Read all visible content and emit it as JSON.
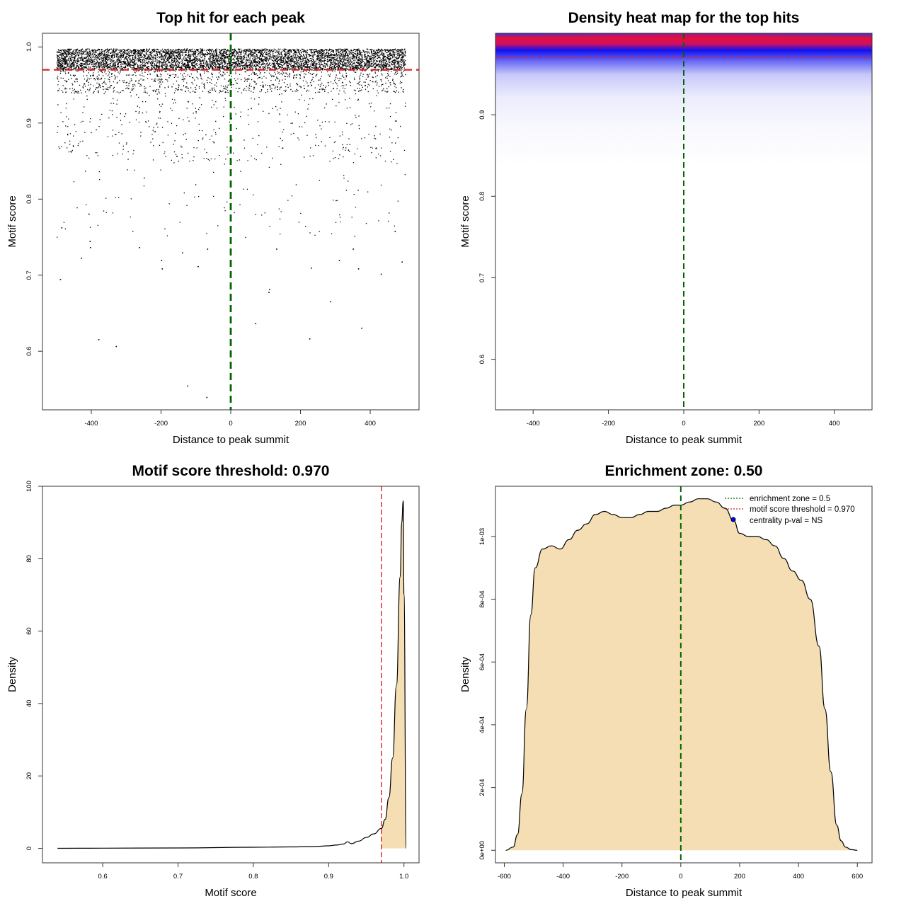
{
  "colors": {
    "threshold_line": "#dd2222",
    "center_line": "#006600",
    "density_fill": "#f5deb3",
    "heat_low": "#ffffff",
    "heat_mid": "#0000ff",
    "heat_high": "#ff0000",
    "legend_point": "#0000ff"
  },
  "chart_data": [
    {
      "type": "scatter",
      "title": "Top hit for each peak",
      "xlabel": "Distance to peak summit",
      "ylabel": "Motif score",
      "xlim": [
        -540,
        540
      ],
      "ylim": [
        0.523,
        1.018
      ],
      "x_ticks": [
        -400,
        -200,
        0,
        200,
        400
      ],
      "x_tick_labels": [
        "-400",
        "-200",
        "0",
        "200",
        "400"
      ],
      "y_ticks": [
        0.6,
        0.7,
        0.8,
        0.9,
        1.0
      ],
      "y_tick_labels": [
        "0.6",
        "0.7",
        "0.8",
        "0.9",
        "1.0"
      ],
      "points_x_range": [
        -500,
        500
      ],
      "score_threshold": 0.97,
      "center_line_x": 0,
      "outlier_points": [
        {
          "x": -490,
          "y": 0.695
        },
        {
          "x": -486,
          "y": 0.763
        },
        {
          "x": -430,
          "y": 0.723
        },
        {
          "x": -408,
          "y": 0.781
        },
        {
          "x": -405,
          "y": 0.745
        },
        {
          "x": -404,
          "y": 0.737
        },
        {
          "x": -380,
          "y": 0.616
        },
        {
          "x": -330,
          "y": 0.607
        },
        {
          "x": -263,
          "y": 0.737
        },
        {
          "x": -200,
          "y": 0.72
        },
        {
          "x": -198,
          "y": 0.709
        },
        {
          "x": -125,
          "y": 0.555
        },
        {
          "x": -140,
          "y": 0.73
        },
        {
          "x": -70,
          "y": 0.54
        },
        {
          "x": -68,
          "y": 0.735
        },
        {
          "x": -95,
          "y": 0.712
        },
        {
          "x": 70,
          "y": 0.637
        },
        {
          "x": 108,
          "y": 0.678
        },
        {
          "x": 110,
          "y": 0.682
        },
        {
          "x": 130,
          "y": 0.735
        },
        {
          "x": 225,
          "y": 0.617
        },
        {
          "x": 230,
          "y": 0.71
        },
        {
          "x": 285,
          "y": 0.666
        },
        {
          "x": 310,
          "y": 0.72
        },
        {
          "x": 365,
          "y": 0.709
        },
        {
          "x": 374,
          "y": 0.631
        },
        {
          "x": 430,
          "y": 0.702
        },
        {
          "x": 490,
          "y": 0.718
        },
        {
          "x": 470,
          "y": 0.758
        },
        {
          "x": 350,
          "y": 0.735
        }
      ]
    },
    {
      "type": "heatmap",
      "title": "Density heat map for the top hits",
      "xlabel": "Distance to peak summit",
      "ylabel": "Motif score",
      "xlim": [
        -500,
        500
      ],
      "ylim": [
        0.538,
        1.0
      ],
      "x_ticks": [
        -400,
        -200,
        0,
        200,
        400
      ],
      "x_tick_labels": [
        "-400",
        "-200",
        "0",
        "200",
        "400"
      ],
      "y_ticks": [
        0.6,
        0.7,
        0.8,
        0.9
      ],
      "y_tick_labels": [
        "0.6",
        "0.7",
        "0.8",
        "0.9"
      ],
      "score_threshold": 0.97,
      "center_line_x": 0
    },
    {
      "type": "area",
      "title": "Motif score threshold: 0.970",
      "xlabel": "Motif score",
      "ylabel": "Density",
      "xlim": [
        0.52,
        1.02
      ],
      "ylim": [
        -4,
        100
      ],
      "x_ticks": [
        0.6,
        0.7,
        0.8,
        0.9,
        1.0
      ],
      "x_tick_labels": [
        "0.6",
        "0.7",
        "0.8",
        "0.9",
        "1.0"
      ],
      "y_ticks": [
        0,
        20,
        40,
        60,
        80,
        100
      ],
      "y_tick_labels": [
        "0",
        "20",
        "40",
        "60",
        "80",
        "100"
      ],
      "threshold_line_x": 0.97,
      "x": [
        0.54,
        0.6,
        0.7,
        0.8,
        0.85,
        0.88,
        0.9,
        0.91,
        0.92,
        0.925,
        0.93,
        0.94,
        0.95,
        0.96,
        0.97,
        0.975,
        0.98,
        0.985,
        0.99,
        0.995,
        0.997,
        0.999,
        1.0,
        1.003
      ],
      "y": [
        0,
        0.05,
        0.1,
        0.3,
        0.4,
        0.5,
        0.7,
        0.9,
        1.2,
        1.8,
        1.3,
        2.0,
        3.0,
        4.0,
        5.5,
        8,
        14,
        25,
        45,
        75,
        90,
        96,
        70,
        0
      ]
    },
    {
      "type": "area",
      "title": "Enrichment zone: 0.50",
      "xlabel": "Distance to peak summit",
      "ylabel": "Density",
      "xlim": [
        -630,
        650
      ],
      "ylim": [
        -4e-05,
        0.00116
      ],
      "x_ticks": [
        -600,
        -400,
        -200,
        0,
        200,
        400,
        600
      ],
      "x_tick_labels": [
        "-600",
        "-400",
        "-200",
        "0",
        "200",
        "400",
        "600"
      ],
      "y_ticks": [
        0,
        0.0002,
        0.0004,
        0.0006,
        0.0008,
        0.001
      ],
      "y_tick_labels": [
        "0e+00",
        "2e-04",
        "4e-04",
        "6e-04",
        "8e-04",
        "1e-03"
      ],
      "center_line_x": 0,
      "x": [
        -595,
        -570,
        -555,
        -540,
        -525,
        -510,
        -495,
        -470,
        -440,
        -410,
        -380,
        -350,
        -320,
        -290,
        -260,
        -230,
        -200,
        -170,
        -140,
        -110,
        -80,
        -50,
        -20,
        0,
        30,
        60,
        90,
        120,
        150,
        180,
        200,
        230,
        260,
        290,
        320,
        350,
        380,
        410,
        440,
        470,
        490,
        510,
        530,
        545,
        560,
        580,
        600
      ],
      "y": [
        0,
        1e-05,
        5e-05,
        0.00018,
        0.00045,
        0.00075,
        0.0009,
        0.00096,
        0.00097,
        0.00096,
        0.00099,
        0.00102,
        0.00104,
        0.00107,
        0.00108,
        0.00107,
        0.00106,
        0.00106,
        0.00107,
        0.00108,
        0.00108,
        0.00109,
        0.0011,
        0.0011,
        0.00111,
        0.00112,
        0.00112,
        0.00111,
        0.00109,
        0.00105,
        0.00101,
        0.001,
        0.001,
        0.00099,
        0.00097,
        0.00093,
        0.00089,
        0.00086,
        0.0008,
        0.00065,
        0.00045,
        0.00025,
        8e-05,
        3e-05,
        1e-05,
        2e-06,
        0
      ],
      "legend": [
        {
          "label": "enrichment zone = 0.5",
          "style": "dotted-green"
        },
        {
          "label": "motif score threshold = 0.970",
          "style": "dotted-red"
        },
        {
          "label": "centrality p-val = NS",
          "style": "blue-point"
        }
      ]
    }
  ]
}
